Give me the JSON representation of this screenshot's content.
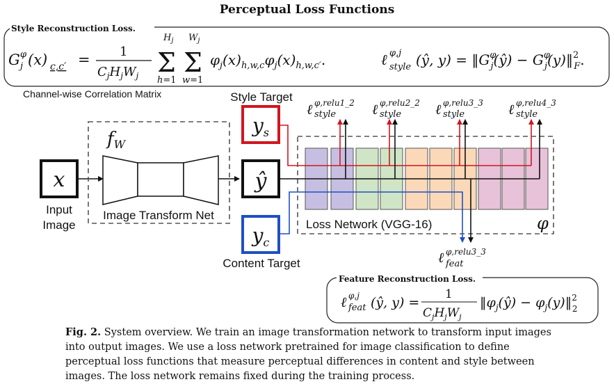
{
  "title": "Perceptual Loss Functions",
  "style_box": {
    "label": "Style Reconstruction Loss.",
    "gram_equation": "G_j^φ(x)_{c,c'} = 1/(C_j H_j W_j) Σ_{h=1}^{H_j} Σ_{w=1}^{W_j} φ_j(x)_{h,w,c} φ_j(x)_{h,w,c'}.",
    "style_loss_equation": "ℓ_style^{φ,j}(ŷ, y) = ‖G_j^φ(ŷ) − G_j^φ(y)‖²_F."
  },
  "channel_note": "Channel-wise Correlation Matrix",
  "style_target_label": "Style Target",
  "style_target_symbol": "y",
  "style_target_sub": "s",
  "content_target_label": "Content Target",
  "content_target_symbol": "y",
  "content_target_sub": "c",
  "input_symbol": "x",
  "input_label_line1": "Input",
  "input_label_line2": "Image",
  "transform_symbol": "f",
  "transform_sub": "W",
  "transform_label": "Image Transform Net",
  "output_symbol": "ŷ",
  "loss_network_label": "Loss Network (VGG-16)",
  "phi_symbol": "φ",
  "style_losses": [
    {
      "sup": "φ,relu1_2",
      "sub": "style"
    },
    {
      "sup": "φ,relu2_2",
      "sub": "style"
    },
    {
      "sup": "φ,relu3_3",
      "sub": "style"
    },
    {
      "sup": "φ,relu4_3",
      "sub": "style"
    }
  ],
  "feat_loss": {
    "sup": "φ,relu3_3",
    "sub": "feat"
  },
  "feature_box": {
    "label": "Feature Reconstruction Loss.",
    "equation": "ℓ_feat^{φ,j}(ŷ, y) = 1/(C_j H_j W_j) ‖φ_j(ŷ) − φ_j(y)‖²_2"
  },
  "caption": {
    "fig": "Fig. 2.",
    "text": "System overview. We train an image transformation network to transform input images into output images. We use a loss network pretrained for image classification to define perceptual loss functions that measure perceptual differences in content and style between images. The loss network remains fixed during the training process."
  },
  "colors": {
    "style_red": "#d0161f",
    "content_blue": "#1f4fc4",
    "purple": "#c7bfe2",
    "green": "#cfe5c6",
    "orange": "#fbd9b8",
    "pink": "#e8c2d8"
  }
}
